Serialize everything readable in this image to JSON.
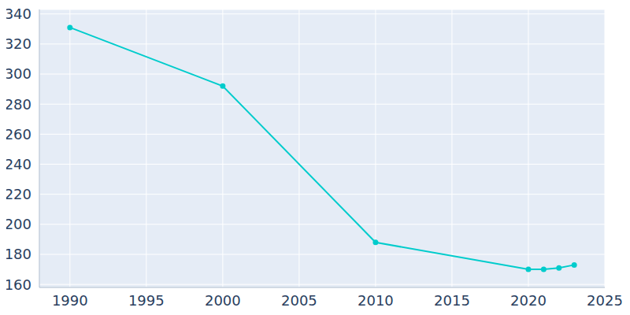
{
  "chart_data": {
    "type": "line",
    "x": [
      1990,
      2000,
      2010,
      2020,
      2021,
      2022,
      2023
    ],
    "values": [
      331,
      292,
      188,
      170,
      170,
      171,
      173
    ],
    "color": "#00cccc",
    "xlim": [
      1988,
      2025
    ],
    "xticks": [
      1990,
      1995,
      2000,
      2005,
      2010,
      2015,
      2020,
      2025
    ],
    "ylim": [
      158,
      343
    ],
    "yticks": [
      160,
      180,
      200,
      220,
      240,
      260,
      280,
      300,
      320,
      340
    ],
    "grid": true,
    "marker": "circle",
    "line_style": "solid"
  }
}
